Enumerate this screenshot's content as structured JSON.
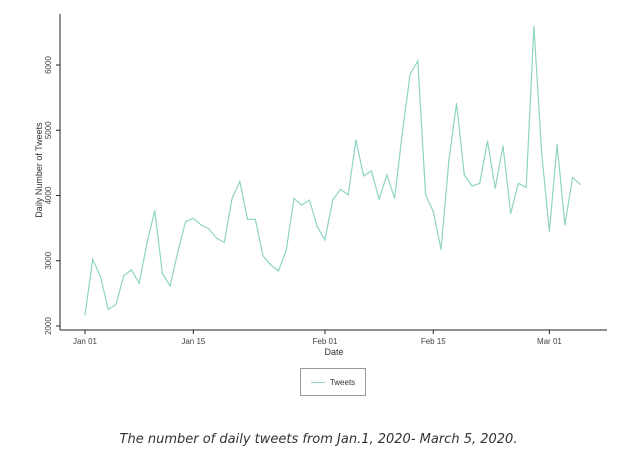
{
  "chart_data": {
    "type": "line",
    "title": "",
    "xlabel": "Date",
    "ylabel": "Daily Number of Tweets",
    "ylim": [
      2000,
      6800
    ],
    "yticks": [
      2000,
      3000,
      4000,
      5000,
      6000
    ],
    "ytick_labels": [
      "2000",
      "3000",
      "4000",
      "5000",
      "6000"
    ],
    "xticks": [
      {
        "day": 0,
        "label": "Jan 01"
      },
      {
        "day": 14,
        "label": "Jan 15"
      },
      {
        "day": 31,
        "label": "Feb 01"
      },
      {
        "day": 45,
        "label": "Feb 15"
      },
      {
        "day": 60,
        "label": "Mar 01"
      }
    ],
    "x_start": "2020-01-01",
    "x_end": "2020-03-05",
    "grid": false,
    "legend_position": "bottom-center",
    "series": [
      {
        "name": "Tweets",
        "color": "#8fd4c4",
        "values": [
          2170,
          3020,
          2760,
          2255,
          2330,
          2770,
          2860,
          2655,
          3265,
          3770,
          2805,
          2615,
          3140,
          3600,
          3650,
          3550,
          3490,
          3345,
          3280,
          3955,
          4215,
          3635,
          3635,
          3075,
          2935,
          2845,
          3155,
          3955,
          3855,
          3930,
          3525,
          3320,
          3930,
          4095,
          4010,
          4850,
          4300,
          4375,
          3945,
          4315,
          3955,
          4955,
          5860,
          6060,
          4010,
          3755,
          3175,
          4520,
          5410,
          4315,
          4145,
          4185,
          4835,
          4110,
          4760,
          3725,
          4185,
          4125,
          6590,
          4645,
          3445,
          4785,
          3550,
          4275,
          4170
        ]
      }
    ]
  },
  "caption": "The number of daily tweets from Jan.1, 2020- March 5, 2020."
}
